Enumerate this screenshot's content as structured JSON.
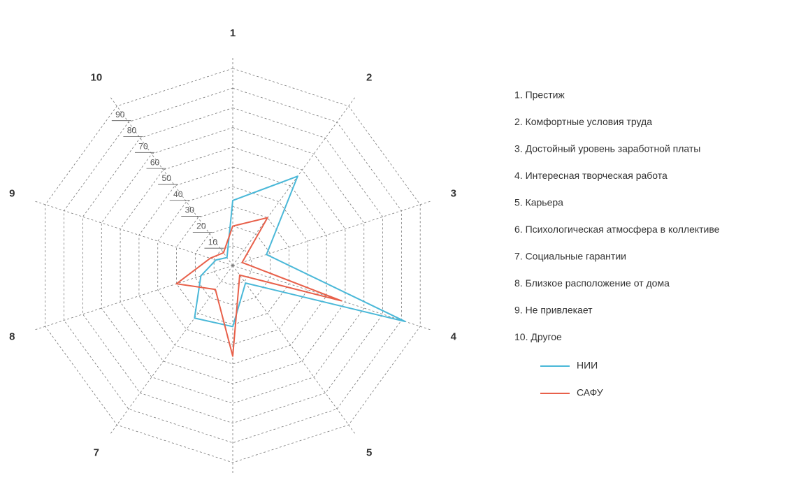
{
  "chart_data": {
    "type": "radar",
    "categories": [
      "1",
      "2",
      "3",
      "4",
      "5",
      "6",
      "7",
      "8",
      "9",
      "10"
    ],
    "category_descriptions": [
      "1. Престиж",
      "2. Комфортные условия труда",
      "3. Достойный уровень заработной платы",
      "4. Интересная творческая работа",
      "5. Карьера",
      "6. Психологическая атмосфера в коллективе",
      "7. Социальные гарантии",
      "8. Близкое расположение от дома",
      "9. Не привлекает",
      "10. Другое"
    ],
    "series": [
      {
        "name": "НИИ",
        "color": "#4ab8d8",
        "values": [
          33,
          56,
          18,
          92,
          11,
          31,
          33,
          17,
          9,
          5
        ]
      },
      {
        "name": "САФУ",
        "color": "#e8604a",
        "values": [
          20,
          30,
          5,
          58,
          6,
          46,
          15,
          30,
          12,
          8
        ]
      }
    ],
    "ylim": [
      0,
      100
    ],
    "yticks": [
      10,
      20,
      30,
      40,
      50,
      60,
      70,
      80,
      90
    ],
    "grid": true
  }
}
